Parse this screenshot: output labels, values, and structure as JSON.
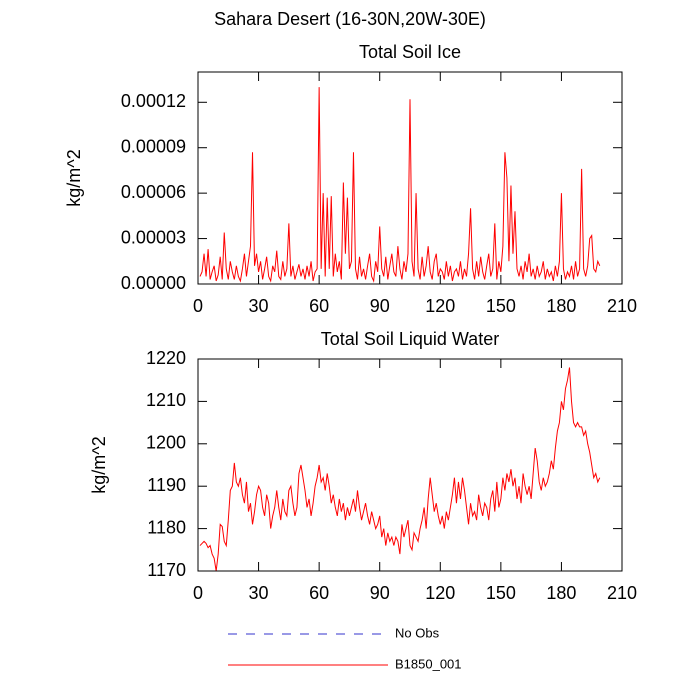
{
  "title": "Sahara Desert (16-30N,20W-30E)",
  "legend": [
    {
      "name": "No Obs",
      "color": "#3333cc",
      "dashed": true
    },
    {
      "name": "B1850_001",
      "color": "#ff0000",
      "dashed": false
    }
  ],
  "chart_data": [
    {
      "type": "line",
      "title": "Total Soil Ice",
      "ylabel": "kg/m^2",
      "xlim": [
        0,
        210
      ],
      "xticks": [
        0,
        30,
        60,
        90,
        120,
        150,
        180,
        210
      ],
      "ylim": [
        0,
        0.00014
      ],
      "yticks": [
        {
          "value": 0,
          "label": "0.00000"
        },
        {
          "value": 3e-05,
          "label": "0.00003"
        },
        {
          "value": 6e-05,
          "label": "0.00006"
        },
        {
          "value": 9e-05,
          "label": "0.00009"
        },
        {
          "value": 0.00012,
          "label": "0.00012"
        }
      ],
      "x": [
        1,
        2,
        3,
        4,
        5,
        6,
        7,
        8,
        9,
        10,
        11,
        12,
        13,
        14,
        15,
        16,
        17,
        18,
        19,
        20,
        21,
        22,
        23,
        24,
        25,
        26,
        27,
        28,
        29,
        30,
        31,
        32,
        33,
        34,
        35,
        36,
        37,
        38,
        39,
        40,
        41,
        42,
        43,
        44,
        45,
        46,
        47,
        48,
        49,
        50,
        51,
        52,
        53,
        54,
        55,
        56,
        57,
        58,
        59,
        60,
        61,
        62,
        63,
        64,
        65,
        66,
        67,
        68,
        69,
        70,
        71,
        72,
        73,
        74,
        75,
        76,
        77,
        78,
        79,
        80,
        81,
        82,
        83,
        84,
        85,
        86,
        87,
        88,
        89,
        90,
        91,
        92,
        93,
        94,
        95,
        96,
        97,
        98,
        99,
        100,
        101,
        102,
        103,
        104,
        105,
        106,
        107,
        108,
        109,
        110,
        111,
        112,
        113,
        114,
        115,
        116,
        117,
        118,
        119,
        120,
        121,
        122,
        123,
        124,
        125,
        126,
        127,
        128,
        129,
        130,
        131,
        132,
        133,
        134,
        135,
        136,
        137,
        138,
        139,
        140,
        141,
        142,
        143,
        144,
        145,
        146,
        147,
        148,
        149,
        150,
        151,
        152,
        153,
        154,
        155,
        156,
        157,
        158,
        159,
        160,
        161,
        162,
        163,
        164,
        165,
        166,
        167,
        168,
        169,
        170,
        171,
        172,
        173,
        174,
        175,
        176,
        177,
        178,
        179,
        180,
        181,
        182,
        183,
        184,
        185,
        186,
        187,
        188,
        189,
        190,
        191,
        192,
        193,
        194,
        195,
        196,
        197,
        198,
        199
      ],
      "series": [
        {
          "name": "B1850_001",
          "color": "#ff0000",
          "values": [
            5e-06,
            8e-06,
            2e-05,
            5e-06,
            2.3e-05,
            3e-06,
            8e-06,
            1.2e-05,
            2e-06,
            6e-06,
            1.8e-05,
            3e-06,
            3.4e-05,
            1e-05,
            3e-06,
            1.5e-05,
            8e-06,
            3e-06,
            1.2e-05,
            5e-06,
            2e-06,
            1e-05,
            2e-05,
            5e-06,
            1.5e-05,
            2.5e-05,
            8.7e-05,
            1.2e-05,
            2e-05,
            8e-06,
            1.5e-05,
            3e-06,
            1e-05,
            1.8e-05,
            5e-06,
            2e-06,
            1.2e-05,
            8e-06,
            2.2e-05,
            5e-06,
            3e-06,
            1.5e-05,
            5e-06,
            1e-05,
            4e-05,
            5e-06,
            1.2e-05,
            3e-06,
            8e-06,
            1.3e-05,
            5e-06,
            1e-05,
            3e-06,
            1.2e-05,
            5e-06,
            1.5e-05,
            2e-06,
            8e-06,
            1e-05,
            0.00013,
            1e-05,
            6e-05,
            5e-06,
            5.7e-05,
            1e-05,
            5.8e-05,
            5e-06,
            2e-05,
            8e-06,
            1.5e-05,
            3e-06,
            6.7e-05,
            2e-05,
            5.7e-05,
            1e-05,
            1.5e-05,
            8.7e-05,
            1e-05,
            3e-06,
            1.8e-05,
            5e-06,
            1e-05,
            3e-06,
            1.2e-05,
            2e-05,
            5e-06,
            2e-06,
            1.5e-05,
            8e-06,
            3.8e-05,
            1e-05,
            5e-06,
            1.8e-05,
            3e-06,
            1.2e-05,
            2e-05,
            8e-06,
            5e-06,
            2.5e-05,
            1e-05,
            3e-06,
            1.5e-05,
            8e-06,
            2e-05,
            0.000122,
            1.5e-05,
            5e-06,
            6e-05,
            1e-05,
            3e-06,
            1.8e-05,
            5e-06,
            1.2e-05,
            2.5e-05,
            8e-06,
            3e-06,
            1.5e-05,
            2e-05,
            5e-06,
            1e-05,
            8e-06,
            3e-06,
            1.5e-05,
            5e-06,
            1.2e-05,
            2e-06,
            8e-06,
            1e-05,
            5e-06,
            1.5e-05,
            3e-06,
            1e-05,
            5e-06,
            2e-05,
            5e-05,
            1e-05,
            3e-06,
            1.5e-05,
            5e-06,
            1.8e-05,
            8e-06,
            3e-06,
            1.2e-05,
            2e-05,
            5e-06,
            1e-05,
            4e-05,
            3e-06,
            1.5e-05,
            8e-06,
            2.5e-05,
            8.7e-05,
            7e-05,
            1.5e-05,
            6.5e-05,
            2e-05,
            4.8e-05,
            1e-05,
            5e-06,
            1.2e-05,
            3e-06,
            1.5e-05,
            8e-06,
            2e-05,
            5e-06,
            1e-05,
            3e-06,
            1.2e-05,
            5e-06,
            8e-06,
            1.5e-05,
            3e-06,
            1e-05,
            5e-06,
            8e-06,
            2e-06,
            1.2e-05,
            5e-06,
            1.5e-05,
            6e-05,
            1e-05,
            3e-06,
            8e-06,
            5e-06,
            1.2e-05,
            3e-06,
            1.5e-05,
            5e-06,
            1e-05,
            7.6e-05,
            1e-05,
            5e-06,
            1.2e-05,
            3e-05,
            3.2e-05,
            1e-05,
            8e-06,
            1.5e-05,
            1.2e-05
          ]
        }
      ]
    },
    {
      "type": "line",
      "title": "Total Soil Liquid Water",
      "ylabel": "kg/m^2",
      "xlim": [
        0,
        210
      ],
      "xticks": [
        0,
        30,
        60,
        90,
        120,
        150,
        180,
        210
      ],
      "ylim": [
        1170,
        1220
      ],
      "yticks": [
        1170,
        1180,
        1190,
        1200,
        1210,
        1220
      ],
      "x": [
        1,
        2,
        3,
        4,
        5,
        6,
        7,
        8,
        9,
        10,
        11,
        12,
        13,
        14,
        15,
        16,
        17,
        18,
        19,
        20,
        21,
        22,
        23,
        24,
        25,
        26,
        27,
        28,
        29,
        30,
        31,
        32,
        33,
        34,
        35,
        36,
        37,
        38,
        39,
        40,
        41,
        42,
        43,
        44,
        45,
        46,
        47,
        48,
        49,
        50,
        51,
        52,
        53,
        54,
        55,
        56,
        57,
        58,
        59,
        60,
        61,
        62,
        63,
        64,
        65,
        66,
        67,
        68,
        69,
        70,
        71,
        72,
        73,
        74,
        75,
        76,
        77,
        78,
        79,
        80,
        81,
        82,
        83,
        84,
        85,
        86,
        87,
        88,
        89,
        90,
        91,
        92,
        93,
        94,
        95,
        96,
        97,
        98,
        99,
        100,
        101,
        102,
        103,
        104,
        105,
        106,
        107,
        108,
        109,
        110,
        111,
        112,
        113,
        114,
        115,
        116,
        117,
        118,
        119,
        120,
        121,
        122,
        123,
        124,
        125,
        126,
        127,
        128,
        129,
        130,
        131,
        132,
        133,
        134,
        135,
        136,
        137,
        138,
        139,
        140,
        141,
        142,
        143,
        144,
        145,
        146,
        147,
        148,
        149,
        150,
        151,
        152,
        153,
        154,
        155,
        156,
        157,
        158,
        159,
        160,
        161,
        162,
        163,
        164,
        165,
        166,
        167,
        168,
        169,
        170,
        171,
        172,
        173,
        174,
        175,
        176,
        177,
        178,
        179,
        180,
        181,
        182,
        183,
        184,
        185,
        186,
        187,
        188,
        189,
        190,
        191,
        192,
        193,
        194,
        195,
        196,
        197,
        198,
        199
      ],
      "series": [
        {
          "name": "B1850_001",
          "color": "#ff0000",
          "values": [
            1176,
            1176.5,
            1177,
            1176.5,
            1175.5,
            1176,
            1174,
            1173,
            1170,
            1174,
            1181,
            1180.5,
            1177,
            1176,
            1182,
            1189,
            1190,
            1195.5,
            1191,
            1190,
            1192,
            1188,
            1186,
            1191,
            1184,
            1186,
            1181,
            1184,
            1188,
            1190,
            1189,
            1185,
            1183,
            1188,
            1186,
            1180,
            1183,
            1185,
            1189,
            1185,
            1182,
            1187,
            1184,
            1183,
            1189,
            1190,
            1186,
            1183,
            1185,
            1193,
            1195,
            1192,
            1189,
            1185,
            1187,
            1183,
            1186,
            1190,
            1192,
            1195,
            1191,
            1192,
            1189,
            1193,
            1190,
            1186,
            1188,
            1185,
            1183,
            1187,
            1184,
            1186,
            1182,
            1185,
            1183,
            1185,
            1187,
            1184,
            1189,
            1185,
            1182,
            1184,
            1186,
            1183,
            1181,
            1184,
            1182,
            1180,
            1181,
            1183,
            1178,
            1180,
            1176,
            1179,
            1177,
            1178,
            1176,
            1178,
            1177,
            1174,
            1181,
            1178,
            1180,
            1182,
            1176,
            1175,
            1179,
            1178,
            1177,
            1180,
            1182,
            1185,
            1180,
            1187,
            1192,
            1188,
            1184,
            1186,
            1183,
            1181,
            1183,
            1180,
            1184,
            1182,
            1185,
            1188,
            1192,
            1186,
            1191,
            1187,
            1192,
            1189,
            1185,
            1181,
            1186,
            1183,
            1184,
            1182,
            1188,
            1185,
            1183,
            1186,
            1185,
            1182,
            1187,
            1189,
            1184,
            1191,
            1185,
            1187,
            1192,
            1189,
            1193,
            1191,
            1194,
            1190,
            1192,
            1187,
            1190,
            1186,
            1193,
            1190,
            1188,
            1190,
            1187,
            1193,
            1199,
            1196,
            1191,
            1189,
            1192,
            1190,
            1191,
            1193,
            1196,
            1194,
            1199,
            1203,
            1205,
            1210,
            1208,
            1213,
            1215,
            1218,
            1210,
            1205,
            1204,
            1205,
            1204,
            1204,
            1202,
            1203,
            1200,
            1198,
            1195,
            1192,
            1193,
            1191,
            1192
          ]
        }
      ]
    }
  ]
}
